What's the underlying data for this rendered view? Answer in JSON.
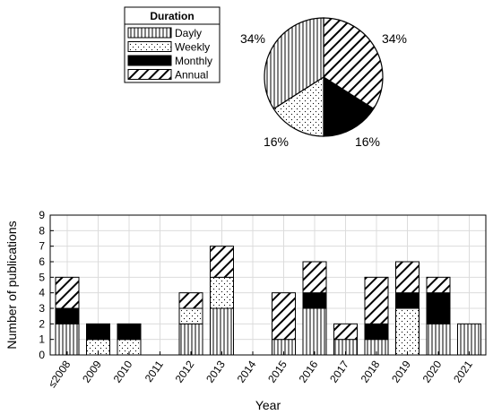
{
  "legend": {
    "title": "Duration",
    "items": [
      {
        "label": "Dayly",
        "pattern": "vertical"
      },
      {
        "label": "Weekly",
        "pattern": "dots"
      },
      {
        "label": "Monthly",
        "pattern": "solid"
      },
      {
        "label": "Annual",
        "pattern": "diagonal"
      }
    ]
  },
  "chart_data": [
    {
      "type": "pie",
      "slices": [
        {
          "series": "Annual",
          "value": 34,
          "label": "34%"
        },
        {
          "series": "Monthly",
          "value": 16,
          "label": "16%"
        },
        {
          "series": "Weekly",
          "value": 16,
          "label": "16%"
        },
        {
          "series": "Dayly",
          "value": 34,
          "label": "34%"
        }
      ]
    },
    {
      "type": "bar",
      "stacked": true,
      "categories": [
        "≤2008",
        "2009",
        "2010",
        "2011",
        "2012",
        "2013",
        "2014",
        "2015",
        "2016",
        "2017",
        "2018",
        "2019",
        "2020",
        "2021"
      ],
      "series": [
        {
          "name": "Dayly",
          "values": [
            2,
            0,
            0,
            0,
            2,
            3,
            0,
            1,
            3,
            1,
            1,
            0,
            2,
            2
          ]
        },
        {
          "name": "Weekly",
          "values": [
            0,
            1,
            1,
            0,
            1,
            2,
            0,
            0,
            0,
            0,
            0,
            3,
            0,
            0
          ]
        },
        {
          "name": "Monthly",
          "values": [
            1,
            1,
            1,
            0,
            0,
            0,
            0,
            0,
            1,
            0,
            1,
            1,
            2,
            0
          ]
        },
        {
          "name": "Annual",
          "values": [
            2,
            0,
            0,
            0,
            1,
            2,
            0,
            3,
            2,
            1,
            3,
            2,
            1,
            0
          ]
        }
      ],
      "xlabel": "Year",
      "ylabel": "Number of publications",
      "ylim": [
        0,
        9
      ],
      "yticks": [
        0,
        1,
        2,
        3,
        4,
        5,
        6,
        7,
        8,
        9
      ],
      "grid": true
    }
  ]
}
